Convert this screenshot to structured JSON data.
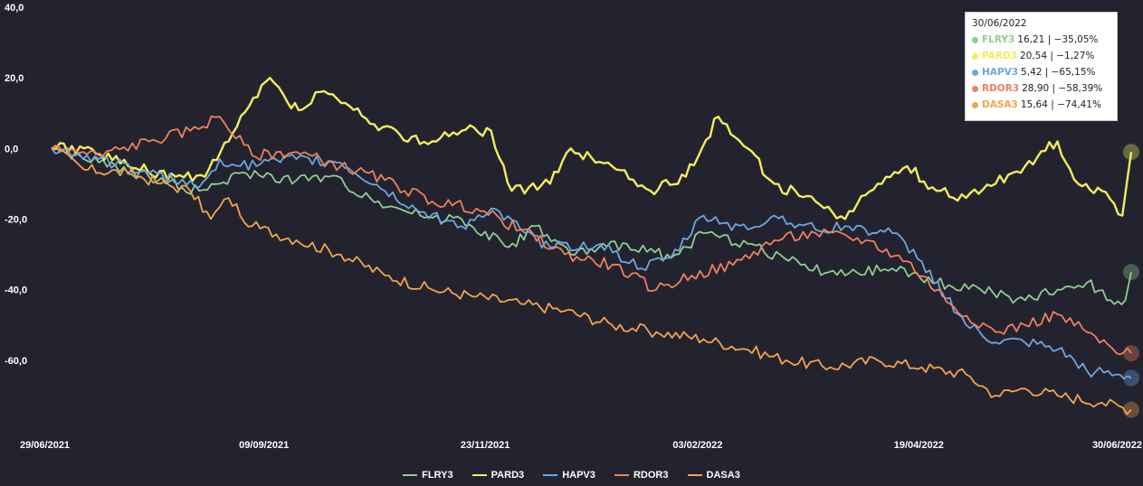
{
  "chart_data": {
    "type": "line",
    "x_ticks": [
      "29/06/2021",
      "09/09/2021",
      "23/11/2021",
      "03/02/2022",
      "19/04/2022",
      "30/06/2022"
    ],
    "y_ticks": [
      "40,0",
      "20,0",
      "0,0",
      "-20,0",
      "-40,0",
      "-60,0"
    ],
    "ylim": [
      -80,
      40
    ],
    "xlim": [
      "29/06/2021",
      "30/06/2022"
    ],
    "grid": false,
    "legend_position": "bottom",
    "series": [
      {
        "name": "FLRY3",
        "color": "#8fce8f",
        "price": "16,21",
        "pct": "-35,05%",
        "points": [
          [
            "29/06/2021",
            0
          ],
          [
            "15/07/2021",
            -4
          ],
          [
            "01/08/2021",
            -8
          ],
          [
            "18/08/2021",
            -12
          ],
          [
            "25/08/2021",
            -10
          ],
          [
            "03/09/2021",
            -7
          ],
          [
            "20/09/2021",
            -9
          ],
          [
            "01/10/2021",
            -8
          ],
          [
            "15/10/2021",
            -14
          ],
          [
            "01/11/2021",
            -19
          ],
          [
            "15/11/2021",
            -20
          ],
          [
            "01/12/2021",
            -28
          ],
          [
            "10/12/2021",
            -22
          ],
          [
            "22/12/2021",
            -30
          ],
          [
            "10/01/2022",
            -27
          ],
          [
            "25/01/2022",
            -31
          ],
          [
            "05/02/2022",
            -24
          ],
          [
            "20/02/2022",
            -27
          ],
          [
            "10/03/2022",
            -33
          ],
          [
            "25/03/2022",
            -36
          ],
          [
            "10/04/2022",
            -34
          ],
          [
            "25/04/2022",
            -38
          ],
          [
            "10/05/2022",
            -40
          ],
          [
            "25/05/2022",
            -43
          ],
          [
            "05/06/2022",
            -40
          ],
          [
            "15/06/2022",
            -38
          ],
          [
            "23/06/2022",
            -43
          ],
          [
            "28/06/2022",
            -43
          ],
          [
            "30/06/2022",
            -35
          ]
        ]
      },
      {
        "name": "PARD3",
        "color": "#f3ec5c",
        "price": "20,54",
        "pct": "-1,27%",
        "points": [
          [
            "29/06/2021",
            0
          ],
          [
            "10/07/2021",
            0
          ],
          [
            "25/07/2021",
            -5
          ],
          [
            "10/08/2021",
            -8
          ],
          [
            "20/08/2021",
            -8
          ],
          [
            "28/08/2021",
            2
          ],
          [
            "04/09/2021",
            12
          ],
          [
            "11/09/2021",
            20
          ],
          [
            "17/09/2021",
            13
          ],
          [
            "22/09/2021",
            11
          ],
          [
            "28/09/2021",
            16
          ],
          [
            "08/10/2021",
            12
          ],
          [
            "15/10/2021",
            7
          ],
          [
            "25/10/2021",
            4
          ],
          [
            "05/11/2021",
            2
          ],
          [
            "15/11/2021",
            5
          ],
          [
            "25/11/2021",
            5
          ],
          [
            "02/12/2021",
            -12
          ],
          [
            "15/12/2021",
            -10
          ],
          [
            "22/12/2021",
            0
          ],
          [
            "05/01/2022",
            -5
          ],
          [
            "18/01/2022",
            -12
          ],
          [
            "30/01/2022",
            -8
          ],
          [
            "10/02/2022",
            9
          ],
          [
            "20/02/2022",
            0
          ],
          [
            "01/03/2022",
            -10
          ],
          [
            "15/03/2022",
            -15
          ],
          [
            "25/03/2022",
            -20
          ],
          [
            "05/04/2022",
            -10
          ],
          [
            "15/04/2022",
            -5
          ],
          [
            "25/04/2022",
            -12
          ],
          [
            "05/05/2022",
            -14
          ],
          [
            "15/05/2022",
            -10
          ],
          [
            "25/05/2022",
            -5
          ],
          [
            "05/06/2022",
            2
          ],
          [
            "12/06/2022",
            -10
          ],
          [
            "20/06/2022",
            -12
          ],
          [
            "27/06/2022",
            -19
          ],
          [
            "30/06/2022",
            -1
          ]
        ]
      },
      {
        "name": "HAPV3",
        "color": "#6ba7e0",
        "price": "5,42",
        "pct": "-65,15%",
        "points": [
          [
            "29/06/2021",
            0
          ],
          [
            "15/07/2021",
            -3
          ],
          [
            "01/08/2021",
            -7
          ],
          [
            "18/08/2021",
            -11
          ],
          [
            "25/08/2021",
            -3
          ],
          [
            "01/09/2021",
            -5
          ],
          [
            "20/09/2021",
            -3
          ],
          [
            "05/10/2021",
            -4
          ],
          [
            "20/10/2021",
            -12
          ],
          [
            "01/11/2021",
            -18
          ],
          [
            "15/11/2021",
            -22
          ],
          [
            "25/11/2021",
            -17
          ],
          [
            "05/12/2021",
            -23
          ],
          [
            "15/12/2021",
            -28
          ],
          [
            "01/01/2022",
            -27
          ],
          [
            "15/01/2022",
            -34
          ],
          [
            "25/01/2022",
            -31
          ],
          [
            "05/02/2022",
            -19
          ],
          [
            "20/02/2022",
            -23
          ],
          [
            "01/03/2022",
            -19
          ],
          [
            "15/03/2022",
            -23
          ],
          [
            "25/03/2022",
            -22
          ],
          [
            "10/04/2022",
            -24
          ],
          [
            "20/04/2022",
            -32
          ],
          [
            "05/05/2022",
            -50
          ],
          [
            "15/05/2022",
            -55
          ],
          [
            "25/05/2022",
            -55
          ],
          [
            "05/06/2022",
            -57
          ],
          [
            "15/06/2022",
            -63
          ],
          [
            "25/06/2022",
            -64
          ],
          [
            "30/06/2022",
            -65
          ]
        ]
      },
      {
        "name": "RDOR3",
        "color": "#f0805a",
        "price": "28,90",
        "pct": "-58,39%",
        "points": [
          [
            "29/06/2021",
            0
          ],
          [
            "15/07/2021",
            -2
          ],
          [
            "01/08/2021",
            2
          ],
          [
            "15/08/2021",
            5
          ],
          [
            "25/08/2021",
            9
          ],
          [
            "05/09/2021",
            -2
          ],
          [
            "20/09/2021",
            -1
          ],
          [
            "05/10/2021",
            -5
          ],
          [
            "20/10/2021",
            -9
          ],
          [
            "05/11/2021",
            -15
          ],
          [
            "20/11/2021",
            -17
          ],
          [
            "05/12/2021",
            -23
          ],
          [
            "20/12/2021",
            -30
          ],
          [
            "05/01/2022",
            -33
          ],
          [
            "20/01/2022",
            -40
          ],
          [
            "01/02/2022",
            -36
          ],
          [
            "15/02/2022",
            -33
          ],
          [
            "01/03/2022",
            -26
          ],
          [
            "15/03/2022",
            -24
          ],
          [
            "01/04/2022",
            -26
          ],
          [
            "15/04/2022",
            -32
          ],
          [
            "01/05/2022",
            -45
          ],
          [
            "15/05/2022",
            -52
          ],
          [
            "25/05/2022",
            -50
          ],
          [
            "05/06/2022",
            -47
          ],
          [
            "15/06/2022",
            -52
          ],
          [
            "25/06/2022",
            -58
          ],
          [
            "30/06/2022",
            -58
          ]
        ]
      },
      {
        "name": "DASA3",
        "color": "#f5a34a",
        "price": "15,64",
        "pct": "-74,41%",
        "points": [
          [
            "29/06/2021",
            0
          ],
          [
            "10/07/2021",
            -6
          ],
          [
            "25/07/2021",
            -7
          ],
          [
            "05/08/2021",
            -10
          ],
          [
            "15/08/2021",
            -12
          ],
          [
            "22/08/2021",
            -20
          ],
          [
            "28/08/2021",
            -14
          ],
          [
            "05/09/2021",
            -22
          ],
          [
            "20/09/2021",
            -26
          ],
          [
            "05/10/2021",
            -30
          ],
          [
            "20/10/2021",
            -36
          ],
          [
            "05/11/2021",
            -40
          ],
          [
            "20/11/2021",
            -42
          ],
          [
            "05/12/2021",
            -44
          ],
          [
            "20/12/2021",
            -46
          ],
          [
            "05/01/2022",
            -50
          ],
          [
            "20/01/2022",
            -52
          ],
          [
            "05/02/2022",
            -54
          ],
          [
            "20/02/2022",
            -57
          ],
          [
            "05/03/2022",
            -60
          ],
          [
            "20/03/2022",
            -62
          ],
          [
            "05/04/2022",
            -60
          ],
          [
            "20/04/2022",
            -62
          ],
          [
            "05/05/2022",
            -64
          ],
          [
            "15/05/2022",
            -70
          ],
          [
            "25/05/2022",
            -68
          ],
          [
            "05/06/2022",
            -70
          ],
          [
            "20/06/2022",
            -72
          ],
          [
            "30/06/2022",
            -74
          ]
        ]
      }
    ]
  },
  "tooltip": {
    "date": "30/06/2022",
    "rows": [
      {
        "name": "FLRY3",
        "value": "16,21 | −35,05%"
      },
      {
        "name": "PARD3",
        "value": "20,54 | −1,27%"
      },
      {
        "name": "HAPV3",
        "value": "5,42 | −65,15%"
      },
      {
        "name": "RDOR3",
        "value": "28,90 | −58,39%"
      },
      {
        "name": "DASA3",
        "value": "15,64 | −74,41%"
      }
    ]
  },
  "legend": [
    "FLRY3",
    "PARD3",
    "HAPV3",
    "RDOR3",
    "DASA3"
  ],
  "colors": {
    "background": "#232330",
    "text": "#ffffff"
  }
}
